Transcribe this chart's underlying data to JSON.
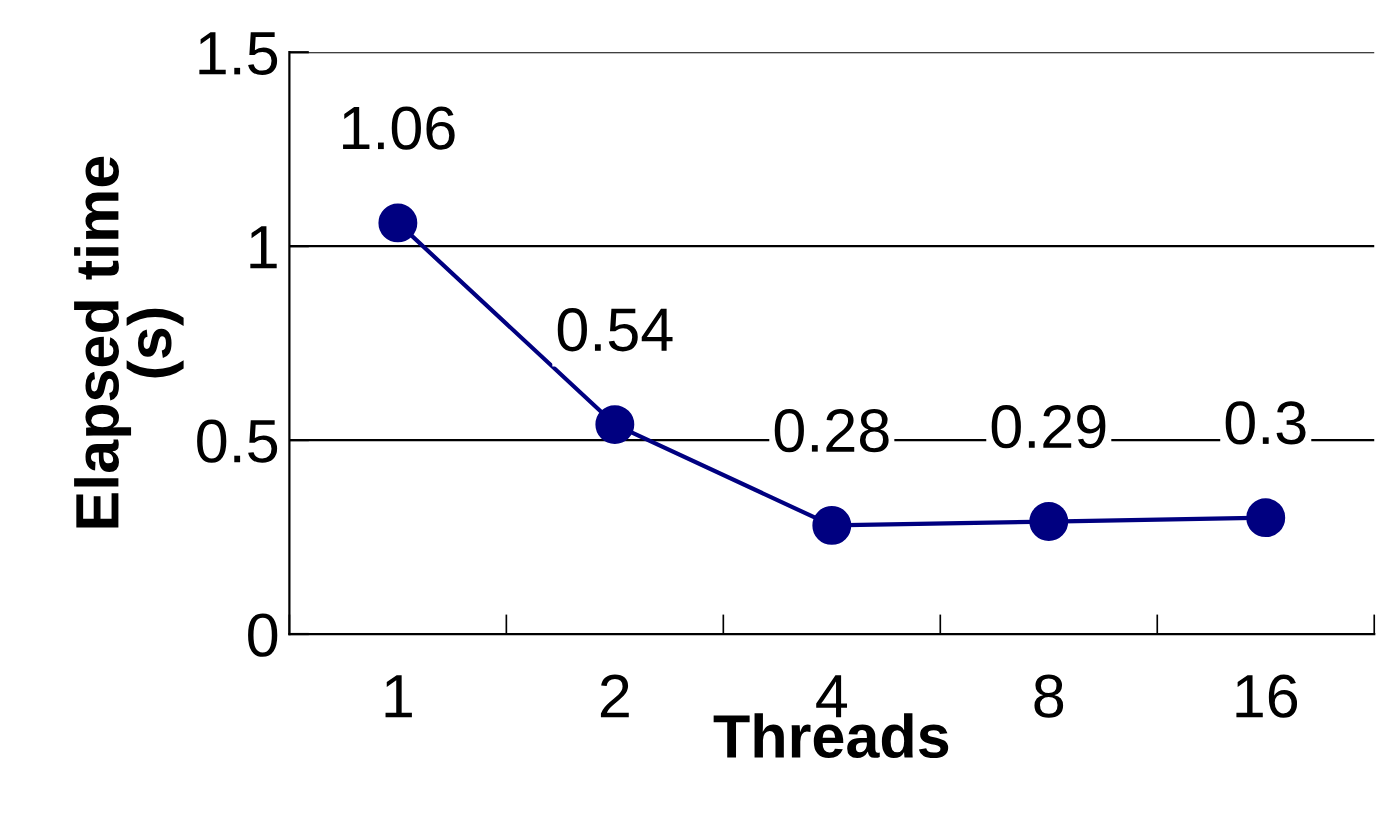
{
  "chart_data": {
    "type": "line",
    "xlabel": "Threads",
    "ylabel": "Elapsed time\n(s)",
    "categories": [
      "1",
      "2",
      "4",
      "8",
      "16"
    ],
    "series": [
      {
        "color": "#000080",
        "values": [
          1.06,
          0.54,
          0.28,
          0.29,
          0.3
        ]
      }
    ],
    "ylim": [
      0,
      1.5
    ],
    "yticks": [
      0,
      0.5,
      1,
      1.5
    ],
    "grid": "y",
    "marker": "circle",
    "line_style": "solid",
    "data_labels": true
  }
}
